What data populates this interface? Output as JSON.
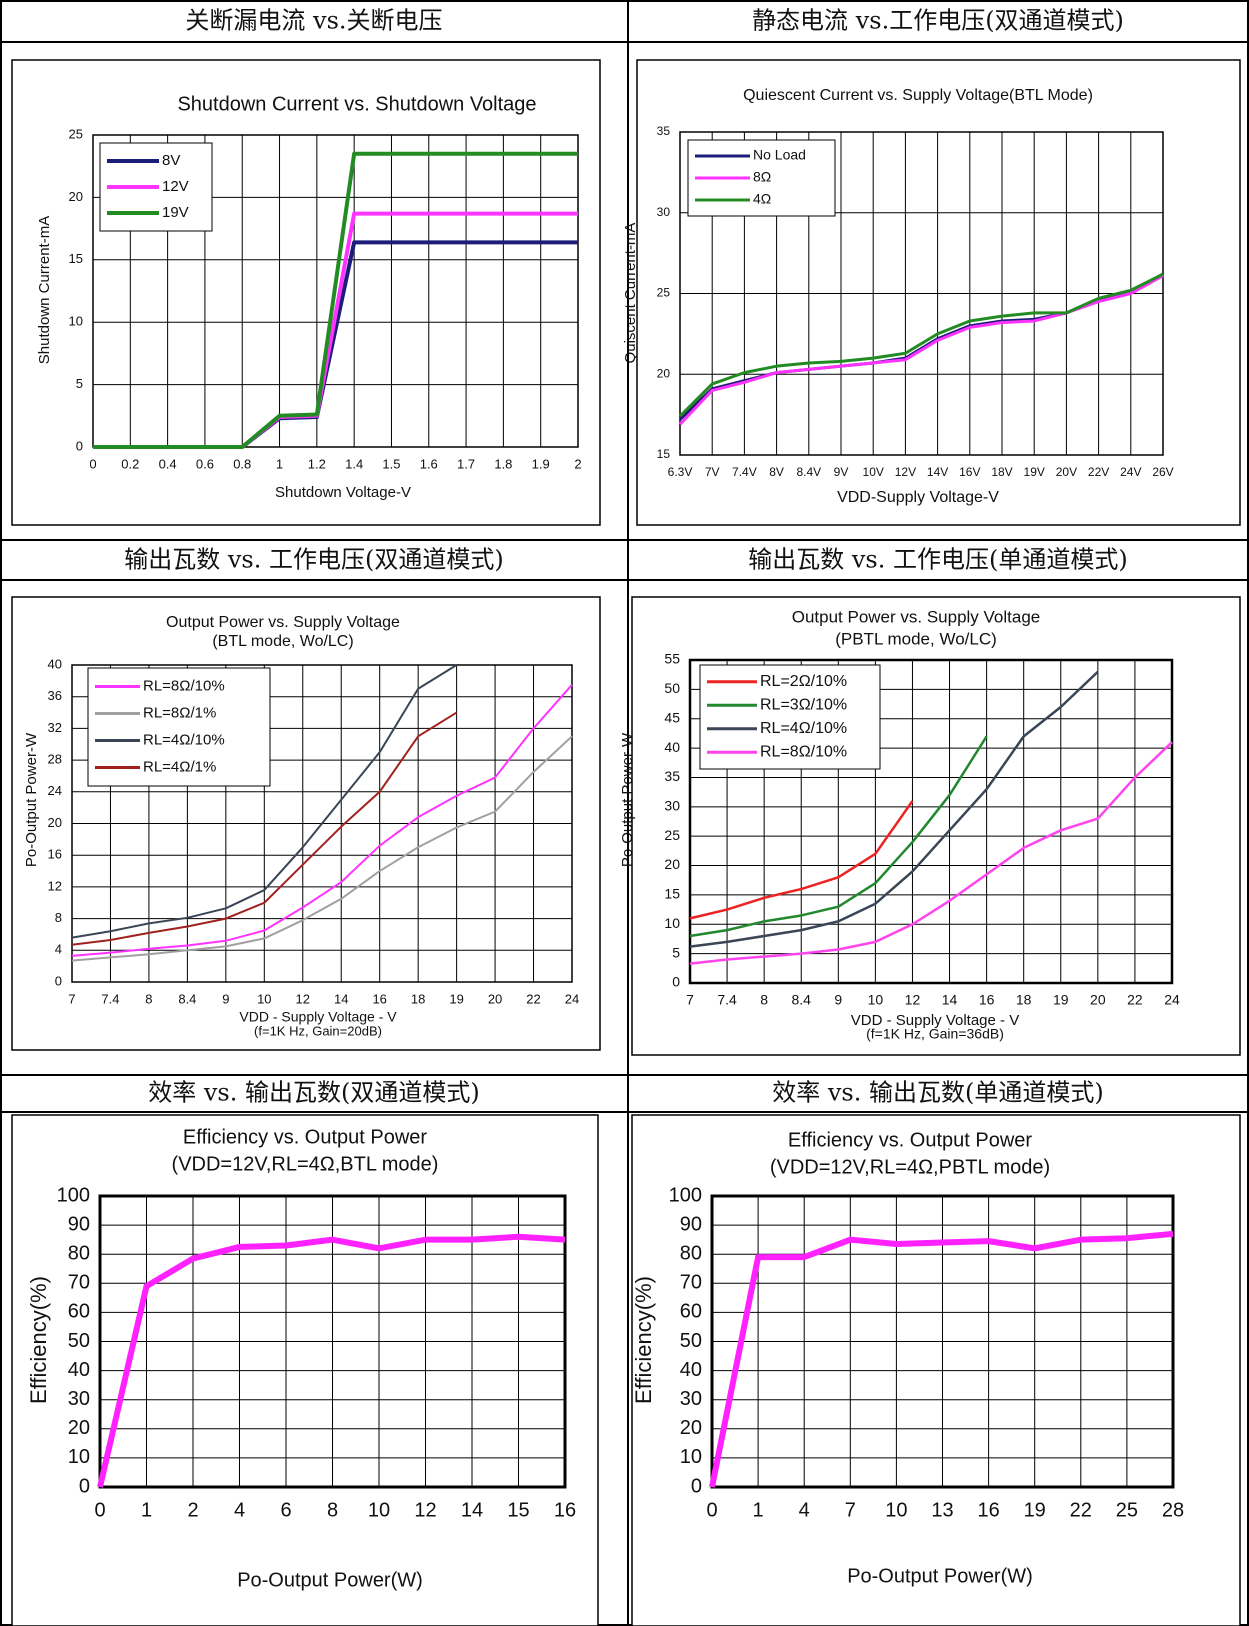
{
  "headers": [
    "关断漏电流 vs.关断电压",
    "静态电流 vs.工作电压(双通道模式)",
    "输出瓦数 vs. 工作电压(双通道模式)",
    "输出瓦数 vs. 工作电压(单通道模式)",
    "效率 vs. 输出瓦数(双通道模式)",
    "效率 vs. 输出瓦数(单通道模式)"
  ],
  "chart_data": [
    {
      "type": "line",
      "title": "Shutdown Current vs. Shutdown Voltage",
      "x_label": "Shutdown Voltage-V",
      "y_label": "Shutdown Current-mA",
      "categories": [
        "0",
        "0.2",
        "0.4",
        "0.6",
        "0.8",
        "1",
        "1.2",
        "1.4",
        "1.5",
        "1.6",
        "1.7",
        "1.8",
        "1.9",
        "2"
      ],
      "series": [
        {
          "name": "8V",
          "color": "#1c1c7a",
          "values": [
            0,
            0,
            0,
            0,
            0,
            2.3,
            2.4,
            16.4,
            16.4,
            16.4,
            16.4,
            16.4,
            16.4,
            16.4
          ]
        },
        {
          "name": "12V",
          "color": "#ff33ff",
          "values": [
            0,
            0,
            0,
            0,
            0,
            2.4,
            2.5,
            18.7,
            18.7,
            18.7,
            18.7,
            18.7,
            18.7,
            18.7
          ]
        },
        {
          "name": "19V",
          "color": "#228b22",
          "values": [
            0,
            0,
            0,
            0,
            0,
            2.5,
            2.6,
            23.5,
            23.5,
            23.5,
            23.5,
            23.5,
            23.5,
            23.5
          ]
        }
      ],
      "ylim": [
        0,
        25
      ],
      "yticks": [
        0,
        5,
        10,
        15,
        20,
        25
      ],
      "grid": true,
      "legend": "upper left"
    },
    {
      "type": "line",
      "title": "Quiescent Current vs. Supply Voltage(BTL Mode)",
      "x_label": "VDD-Supply Voltage-V",
      "y_label": "Quiscent Current-mA",
      "categories": [
        "6.3V",
        "7V",
        "7.4V",
        "8V",
        "8.4V",
        "9V",
        "10V",
        "12V",
        "14V",
        "16V",
        "18V",
        "19V",
        "20V",
        "22V",
        "24V",
        "26V"
      ],
      "series": [
        {
          "name": "No Load",
          "color": "#1c1c7a",
          "values": [
            17.2,
            19.1,
            19.6,
            20.1,
            20.3,
            20.5,
            20.7,
            21.0,
            22.2,
            23.0,
            23.3,
            23.4,
            23.8,
            24.6,
            25.1,
            26.2
          ]
        },
        {
          "name": "8Ω",
          "color": "#ff33ff",
          "values": [
            16.9,
            19.0,
            19.5,
            20.1,
            20.3,
            20.5,
            20.7,
            20.9,
            22.1,
            22.9,
            23.2,
            23.3,
            23.8,
            24.5,
            25.0,
            26.1
          ]
        },
        {
          "name": "4Ω",
          "color": "#228b22",
          "values": [
            17.4,
            19.4,
            20.1,
            20.5,
            20.7,
            20.8,
            21.0,
            21.3,
            22.5,
            23.3,
            23.6,
            23.8,
            23.8,
            24.7,
            25.2,
            26.2
          ]
        }
      ],
      "ylim": [
        15,
        35
      ],
      "yticks": [
        15,
        20,
        25,
        30,
        35
      ],
      "grid": true,
      "legend": "upper left"
    },
    {
      "type": "line",
      "title": "Output Power vs. Supply Voltage",
      "subtitle": "(BTL mode, Wo/LC)",
      "x_label": "VDD - Supply Voltage - V",
      "note": "(f=1K Hz, Gain=20dB)",
      "y_label": "Po-Output Power-W",
      "categories": [
        "7",
        "7.4",
        "8",
        "8.4",
        "9",
        "10",
        "12",
        "14",
        "16",
        "18",
        "19",
        "20",
        "22",
        "24"
      ],
      "series": [
        {
          "name": "RL=8Ω/10%",
          "color": "#ff33ff",
          "values": [
            3.3,
            3.7,
            4.2,
            4.6,
            5.2,
            6.5,
            9.4,
            12.6,
            17.2,
            20.8,
            23.5,
            25.8,
            32,
            37.5
          ]
        },
        {
          "name": "RL=8Ω/1%",
          "color": "#a0a0a0",
          "values": [
            2.7,
            3.1,
            3.5,
            4.0,
            4.5,
            5.5,
            7.8,
            10.5,
            14,
            17,
            19.5,
            21.5,
            26.5,
            31
          ]
        },
        {
          "name": "RL=4Ω/10%",
          "color": "#3a4656",
          "values": [
            5.6,
            6.4,
            7.4,
            8.1,
            9.3,
            11.6,
            17,
            23,
            29,
            37,
            40,
            null,
            null,
            null
          ]
        },
        {
          "name": "RL=4Ω/1%",
          "color": "#a0221e",
          "values": [
            4.7,
            5.3,
            6.2,
            7.0,
            8.0,
            10.0,
            14.8,
            19.6,
            24,
            31,
            34,
            null,
            null,
            null
          ]
        }
      ],
      "ylim": [
        0,
        40
      ],
      "yticks": [
        0,
        4,
        8,
        12,
        16,
        20,
        24,
        28,
        32,
        36,
        40
      ],
      "grid": true,
      "legend": "upper left"
    },
    {
      "type": "line",
      "title": "Output Power vs. Supply Voltage",
      "subtitle": "(PBTL mode, Wo/LC)",
      "x_label": "VDD - Supply Voltage - V",
      "note": "(f=1K Hz, Gain=36dB)",
      "y_label": "Po-Output Power-W",
      "categories": [
        "7",
        "7.4",
        "8",
        "8.4",
        "9",
        "10",
        "12",
        "14",
        "16",
        "18",
        "19",
        "20",
        "22",
        "24"
      ],
      "series": [
        {
          "name": "RL=2Ω/10%",
          "color": "#ee2222",
          "values": [
            11,
            12.5,
            14.5,
            16,
            18,
            22,
            31,
            null,
            null,
            null,
            null,
            null,
            null,
            null
          ]
        },
        {
          "name": "RL=3Ω/10%",
          "color": "#22882e",
          "values": [
            8,
            9,
            10.5,
            11.5,
            13,
            17,
            24,
            32,
            42,
            null,
            null,
            null,
            null,
            null
          ]
        },
        {
          "name": "RL=4Ω/10%",
          "color": "#3a4656",
          "values": [
            6.2,
            7,
            8,
            9,
            10.5,
            13.5,
            19,
            26,
            33,
            42,
            47,
            53,
            null,
            null
          ]
        },
        {
          "name": "RL=8Ω/10%",
          "color": "#ff44ee",
          "values": [
            3.3,
            4,
            4.5,
            5,
            5.7,
            7,
            10,
            14,
            18.5,
            23,
            26,
            28,
            35,
            41
          ]
        }
      ],
      "ylim": [
        0,
        55
      ],
      "yticks": [
        0,
        5,
        10,
        15,
        20,
        25,
        30,
        35,
        40,
        45,
        50,
        55
      ],
      "grid": true,
      "legend": "upper left"
    },
    {
      "type": "line",
      "title": "Efficiency vs. Output Power",
      "subtitle": "(VDD=12V,RL=4Ω,BTL mode)",
      "x_label": "Po-Output Power(W)",
      "y_label": "Efficiency(%)",
      "categories": [
        "0",
        "1",
        "2",
        "4",
        "6",
        "8",
        "10",
        "12",
        "14",
        "15",
        "16"
      ],
      "values": [
        0,
        69,
        78.5,
        82.5,
        83,
        85,
        82,
        85,
        85,
        86,
        85
      ],
      "color": "#ff22ff",
      "ylim": [
        0,
        100
      ],
      "yticks": [
        0,
        10,
        20,
        30,
        40,
        50,
        60,
        70,
        80,
        90,
        100
      ],
      "grid": true
    },
    {
      "type": "line",
      "title": "Efficiency vs. Output Power",
      "subtitle": "(VDD=12V,RL=4Ω,PBTL mode)",
      "x_label": "Po-Output Power(W)",
      "y_label": "Efficiency(%)",
      "categories": [
        "0",
        "1",
        "4",
        "7",
        "10",
        "13",
        "16",
        "19",
        "22",
        "25",
        "28"
      ],
      "values": [
        0,
        79,
        79,
        85,
        83.5,
        84,
        84.5,
        82,
        85,
        85.5,
        87
      ],
      "color": "#ff22ff",
      "ylim": [
        0,
        100
      ],
      "yticks": [
        0,
        10,
        20,
        30,
        40,
        50,
        60,
        70,
        80,
        90,
        100
      ],
      "grid": true
    }
  ]
}
